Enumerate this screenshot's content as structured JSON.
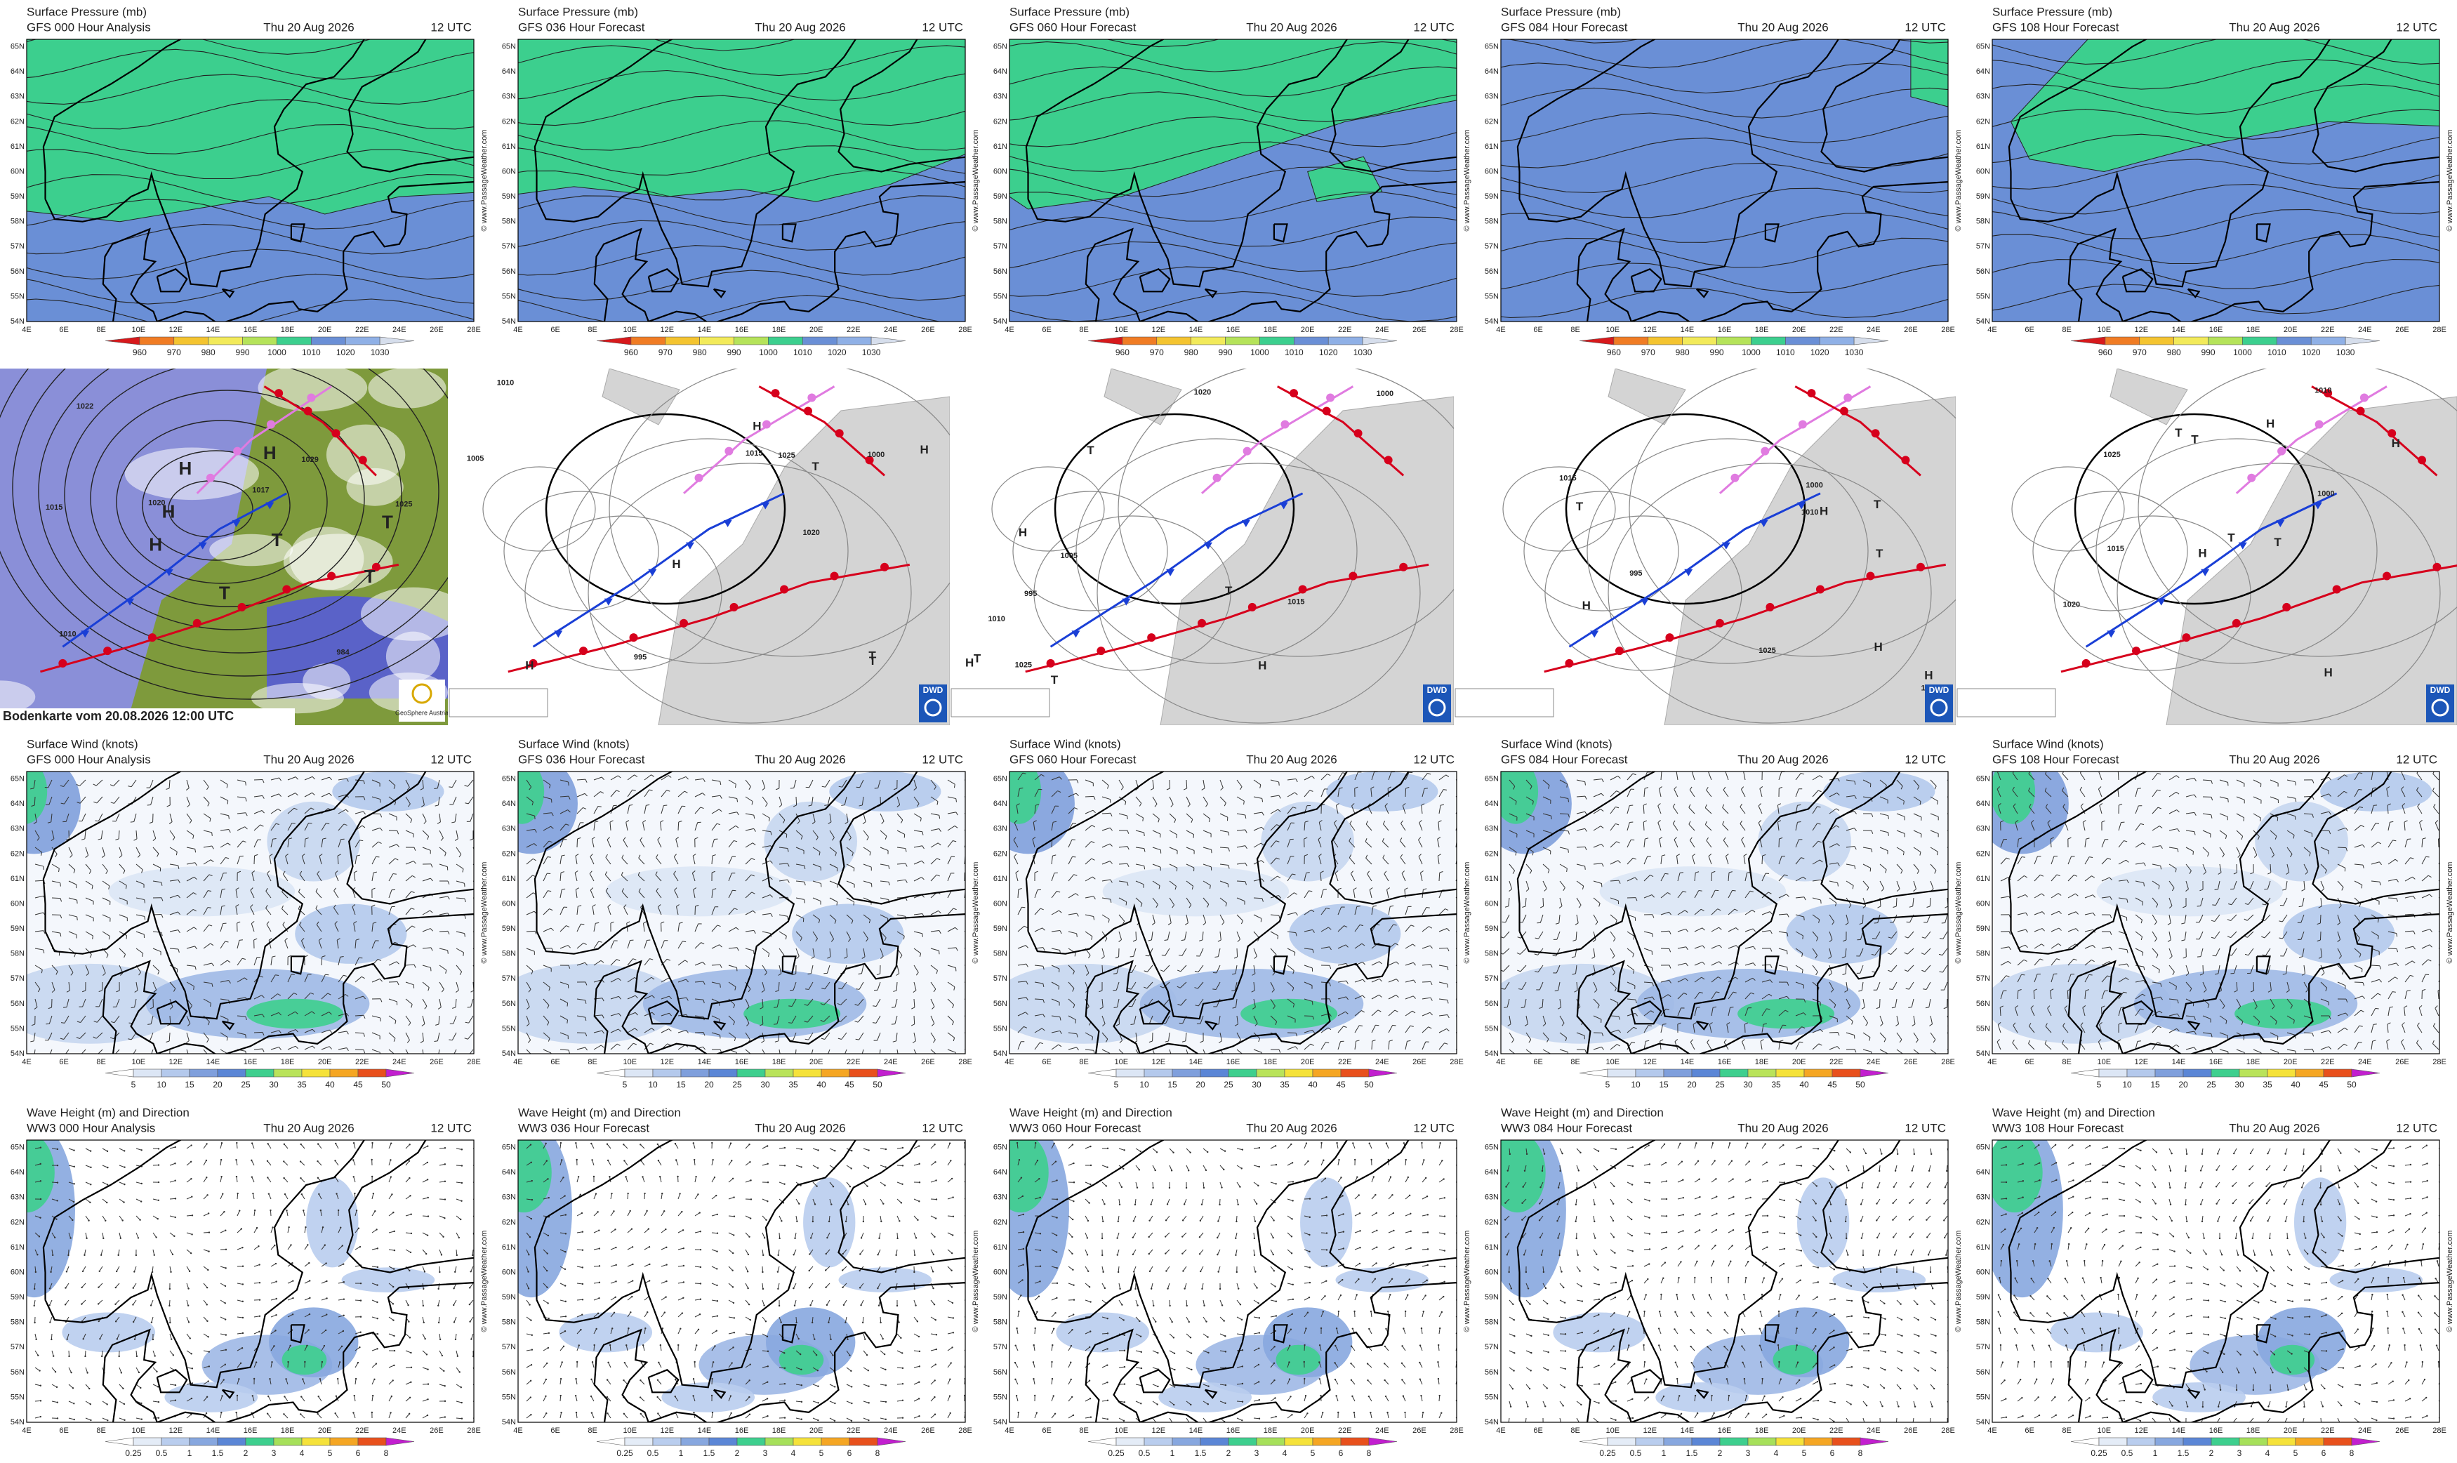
{
  "watermark": "© www.PassageWeather.com",
  "lat_labels": [
    "54N",
    "55N",
    "56N",
    "57N",
    "58N",
    "59N",
    "60N",
    "61N",
    "62N",
    "63N",
    "64N",
    "65N"
  ],
  "lon_labels": [
    "4E",
    "6E",
    "8E",
    "10E",
    "12E",
    "14E",
    "16E",
    "18E",
    "20E",
    "22E",
    "24E",
    "26E",
    "28E"
  ],
  "rows": [
    {
      "kind": "pressure",
      "title": "Surface Pressure (mb)",
      "legend": {
        "labels": [
          960,
          970,
          980,
          990,
          1000,
          1010,
          1020,
          1030
        ],
        "colors": [
          "#d7191c",
          "#f07c24",
          "#f4c430",
          "#f2ea5a",
          "#b5e35a",
          "#3ccf8e",
          "#6a8fd6",
          "#8fb0e6",
          "#d6deec"
        ]
      },
      "panels": [
        {
          "model": "GFS 000 Hour Analysis",
          "date": "Thu 20 Aug 2026",
          "time": "12 UTC"
        },
        {
          "model": "GFS 036 Hour Forecast",
          "date": "Thu 20 Aug 2026",
          "time": "12 UTC"
        },
        {
          "model": "GFS 060 Hour Forecast",
          "date": "Thu 20 Aug 2026",
          "time": "12 UTC"
        },
        {
          "model": "GFS 084 Hour Forecast",
          "date": "Thu 20 Aug 2026",
          "time": "12 UTC"
        },
        {
          "model": "GFS 108 Hour Forecast",
          "date": "Thu 20 Aug 2026",
          "time": "12 UTC"
        }
      ]
    },
    {
      "kind": "synoptic",
      "panels": [
        {
          "caption": "Bodenkarte vom 20.08.2026 12:00 UTC",
          "logo": "GeoSphere Austria",
          "labels": [
            "H",
            "H",
            "H",
            "H",
            "T",
            "T",
            "T",
            "T",
            "1025",
            "1029",
            "1017",
            "1020",
            "984",
            "1010",
            "1015",
            "1022"
          ]
        },
        {
          "logo": "DWD",
          "labels": [
            "H",
            "H",
            "H",
            "H",
            "T",
            "T",
            "T",
            "1005",
            "1010",
            "1015",
            "1020",
            "1025",
            "1000",
            "995"
          ]
        },
        {
          "logo": "DWD",
          "labels": [
            "H",
            "H",
            "H",
            "T",
            "T",
            "T",
            "T",
            "1005",
            "1010",
            "1015",
            "1020",
            "1025",
            "995",
            "1000"
          ]
        },
        {
          "logo": "DWD",
          "labels": [
            "H",
            "H",
            "H",
            "H",
            "T",
            "T",
            "T",
            "995",
            "1000",
            "1010",
            "1015",
            "1020",
            "1025"
          ]
        },
        {
          "logo": "DWD",
          "labels": [
            "H",
            "H",
            "H",
            "H",
            "T",
            "T",
            "T",
            "T",
            "1000",
            "1010",
            "1015",
            "1020",
            "1025"
          ]
        }
      ]
    },
    {
      "kind": "wind",
      "title": "Surface Wind (knots)",
      "legend": {
        "labels": [
          5,
          10,
          15,
          20,
          25,
          30,
          35,
          40,
          45,
          50
        ],
        "colors": [
          "#ffffff",
          "#dce6f5",
          "#b4c9ec",
          "#7f9fdc",
          "#5b86d6",
          "#3ecf8e",
          "#b9e35a",
          "#f5e23a",
          "#f5a623",
          "#e8501c",
          "#c21fcf"
        ]
      },
      "panels": [
        {
          "model": "GFS 000 Hour Analysis",
          "date": "Thu 20 Aug 2026",
          "time": "12 UTC"
        },
        {
          "model": "GFS 036 Hour Forecast",
          "date": "Thu 20 Aug 2026",
          "time": "12 UTC"
        },
        {
          "model": "GFS 060 Hour Forecast",
          "date": "Thu 20 Aug 2026",
          "time": "12 UTC"
        },
        {
          "model": "GFS 084 Hour Forecast",
          "date": "Thu 20 Aug 2026",
          "time": "12 UTC"
        },
        {
          "model": "GFS 108 Hour Forecast",
          "date": "Thu 20 Aug 2026",
          "time": "12 UTC"
        }
      ]
    },
    {
      "kind": "wave",
      "title": "Wave Height (m) and Direction",
      "legend": {
        "labels": [
          0.25,
          0.5,
          1,
          1.5,
          2,
          3,
          4,
          5,
          6,
          8
        ],
        "colors": [
          "#ffffff",
          "#e4ecf7",
          "#b9cdee",
          "#87a7df",
          "#5b86d6",
          "#3ecf8e",
          "#a6e05a",
          "#f5e23a",
          "#f5a623",
          "#e8501c",
          "#c21fcf"
        ]
      },
      "panels": [
        {
          "model": "WW3 000 Hour Analysis",
          "date": "Thu 20 Aug 2026",
          "time": "12 UTC"
        },
        {
          "model": "WW3 036 Hour Forecast",
          "date": "Thu 20 Aug 2026",
          "time": "12 UTC"
        },
        {
          "model": "WW3 060 Hour Forecast",
          "date": "Thu 20 Aug 2026",
          "time": "12 UTC"
        },
        {
          "model": "WW3 084 Hour Forecast",
          "date": "Thu 20 Aug 2026",
          "time": "12 UTC"
        },
        {
          "model": "WW3 108 Hour Forecast",
          "date": "Thu 20 Aug 2026",
          "time": "12 UTC"
        }
      ]
    }
  ]
}
